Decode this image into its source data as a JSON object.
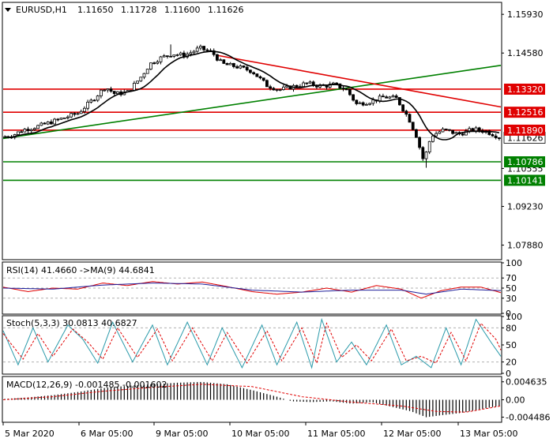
{
  "chart_data": [
    {
      "type": "candlestick",
      "panel": "price",
      "symbol": "EURUSD,H1",
      "ohlc_header": [
        "1.11650",
        "1.11728",
        "1.11600",
        "1.11626"
      ],
      "x_ticks": [
        "5 Mar 2020",
        "6 Mar 05:00",
        "9 Mar 05:00",
        "10 Mar 05:00",
        "11 Mar 05:00",
        "12 Mar 05:00",
        "13 Mar 05:00"
      ],
      "y_ticks": [
        1.1593,
        1.1458,
        1.1332,
        1.12516,
        1.1189,
        1.10786,
        1.10555,
        1.10141,
        1.0923,
        1.0788
      ],
      "ylim": [
        1.074,
        1.1632
      ],
      "current_price": 1.11626,
      "current_price_label": "1.11626",
      "levels": [
        {
          "price": 1.1332,
          "label": "1.13320",
          "color": "#e00000"
        },
        {
          "price": 1.12516,
          "label": "1.12516",
          "color": "#e00000"
        },
        {
          "price": 1.1189,
          "label": "1.11890",
          "color": "#e00000"
        },
        {
          "price": 1.10786,
          "label": "1.10786",
          "color": "#008000"
        },
        {
          "price": 1.10141,
          "label": "1.10141",
          "color": "#008000"
        }
      ],
      "trendlines": [
        {
          "color": "#008000",
          "from": [
            0.0,
            1.116
          ],
          "to": [
            1.0,
            1.1415
          ]
        },
        {
          "color": "#e00000",
          "from": [
            0.43,
            1.145
          ],
          "to": [
            1.0,
            1.127
          ]
        }
      ],
      "close_anchors": [
        [
          0.0,
          1.1165
        ],
        [
          0.02,
          1.1172
        ],
        [
          0.04,
          1.119
        ],
        [
          0.075,
          1.1205
        ],
        [
          0.11,
          1.1225
        ],
        [
          0.15,
          1.1248
        ],
        [
          0.18,
          1.1295
        ],
        [
          0.205,
          1.134
        ],
        [
          0.225,
          1.1315
        ],
        [
          0.25,
          1.1322
        ],
        [
          0.275,
          1.137
        ],
        [
          0.295,
          1.142
        ],
        [
          0.315,
          1.144
        ],
        [
          0.34,
          1.1455
        ],
        [
          0.365,
          1.145
        ],
        [
          0.395,
          1.1475
        ],
        [
          0.42,
          1.146
        ],
        [
          0.44,
          1.142
        ],
        [
          0.47,
          1.141
        ],
        [
          0.5,
          1.1395
        ],
        [
          0.53,
          1.1345
        ],
        [
          0.555,
          1.133
        ],
        [
          0.58,
          1.134
        ],
        [
          0.61,
          1.1352
        ],
        [
          0.64,
          1.1342
        ],
        [
          0.665,
          1.1348
        ],
        [
          0.69,
          1.133
        ],
        [
          0.71,
          1.128
        ],
        [
          0.74,
          1.129
        ],
        [
          0.765,
          1.1305
        ],
        [
          0.79,
          1.13
        ],
        [
          0.815,
          1.123
        ],
        [
          0.83,
          1.117
        ],
        [
          0.845,
          1.108
        ],
        [
          0.86,
          1.117
        ],
        [
          0.885,
          1.119
        ],
        [
          0.915,
          1.1175
        ],
        [
          0.945,
          1.1192
        ],
        [
          0.97,
          1.1185
        ],
        [
          1.0,
          1.1163
        ]
      ],
      "spikes": [
        {
          "position": 0.338,
          "high": 1.1488
        },
        {
          "position": 0.85,
          "low": 1.1058
        }
      ],
      "moving_average_color": "#000000"
    },
    {
      "type": "line",
      "panel": "rsi",
      "title": "RSI(14) 41.4660 ->MA(9) 44.6841",
      "y_ticks": [
        100,
        70,
        50,
        30,
        0
      ],
      "ylim": [
        0,
        100
      ],
      "levels": [
        70,
        50,
        30
      ],
      "series": [
        {
          "color": "#e00000",
          "anchors": [
            [
              0.0,
              52
            ],
            [
              0.05,
              43
            ],
            [
              0.1,
              50
            ],
            [
              0.15,
              48
            ],
            [
              0.2,
              60
            ],
            [
              0.25,
              55
            ],
            [
              0.3,
              63
            ],
            [
              0.35,
              58
            ],
            [
              0.4,
              62
            ],
            [
              0.45,
              53
            ],
            [
              0.5,
              43
            ],
            [
              0.55,
              38
            ],
            [
              0.6,
              42
            ],
            [
              0.65,
              50
            ],
            [
              0.7,
              42
            ],
            [
              0.75,
              55
            ],
            [
              0.8,
              48
            ],
            [
              0.84,
              30
            ],
            [
              0.88,
              45
            ],
            [
              0.92,
              52
            ],
            [
              0.96,
              52
            ],
            [
              1.0,
              41
            ]
          ]
        },
        {
          "color": "#1e1e9a",
          "anchors": [
            [
              0.0,
              50
            ],
            [
              0.1,
              48
            ],
            [
              0.2,
              56
            ],
            [
              0.3,
              60
            ],
            [
              0.4,
              58
            ],
            [
              0.5,
              46
            ],
            [
              0.6,
              42
            ],
            [
              0.7,
              46
            ],
            [
              0.8,
              46
            ],
            [
              0.85,
              38
            ],
            [
              0.92,
              48
            ],
            [
              1.0,
              45
            ]
          ]
        }
      ]
    },
    {
      "type": "line",
      "panel": "stochastic",
      "title": "Stoch(5,3,3) 30.0813 40.6827",
      "y_ticks": [
        100,
        80,
        50,
        20,
        0
      ],
      "ylim": [
        0,
        100
      ],
      "levels": [
        80,
        20
      ],
      "series": [
        {
          "color": "#2a9aaa",
          "anchors": [
            [
              0.0,
              75
            ],
            [
              0.03,
              15
            ],
            [
              0.06,
              80
            ],
            [
              0.09,
              20
            ],
            [
              0.13,
              85
            ],
            [
              0.16,
              60
            ],
            [
              0.19,
              18
            ],
            [
              0.22,
              90
            ],
            [
              0.26,
              20
            ],
            [
              0.3,
              85
            ],
            [
              0.33,
              15
            ],
            [
              0.37,
              90
            ],
            [
              0.41,
              15
            ],
            [
              0.44,
              80
            ],
            [
              0.48,
              10
            ],
            [
              0.52,
              85
            ],
            [
              0.55,
              15
            ],
            [
              0.59,
              90
            ],
            [
              0.62,
              10
            ],
            [
              0.64,
              95
            ],
            [
              0.67,
              20
            ],
            [
              0.7,
              55
            ],
            [
              0.73,
              15
            ],
            [
              0.77,
              85
            ],
            [
              0.8,
              15
            ],
            [
              0.83,
              30
            ],
            [
              0.86,
              10
            ],
            [
              0.89,
              80
            ],
            [
              0.92,
              15
            ],
            [
              0.95,
              95
            ],
            [
              0.98,
              55
            ],
            [
              1.0,
              30
            ]
          ]
        },
        {
          "color": "#e00000",
          "dashed": true,
          "anchors": [
            [
              0.0,
              70
            ],
            [
              0.04,
              25
            ],
            [
              0.07,
              70
            ],
            [
              0.1,
              30
            ],
            [
              0.14,
              78
            ],
            [
              0.17,
              55
            ],
            [
              0.2,
              25
            ],
            [
              0.23,
              80
            ],
            [
              0.27,
              28
            ],
            [
              0.31,
              78
            ],
            [
              0.34,
              22
            ],
            [
              0.38,
              80
            ],
            [
              0.42,
              22
            ],
            [
              0.45,
              72
            ],
            [
              0.49,
              18
            ],
            [
              0.53,
              75
            ],
            [
              0.56,
              22
            ],
            [
              0.6,
              80
            ],
            [
              0.63,
              18
            ],
            [
              0.65,
              88
            ],
            [
              0.68,
              28
            ],
            [
              0.71,
              50
            ],
            [
              0.74,
              22
            ],
            [
              0.78,
              78
            ],
            [
              0.81,
              22
            ],
            [
              0.84,
              30
            ],
            [
              0.87,
              18
            ],
            [
              0.9,
              72
            ],
            [
              0.93,
              22
            ],
            [
              0.96,
              88
            ],
            [
              0.99,
              60
            ],
            [
              1.0,
              41
            ]
          ]
        }
      ]
    },
    {
      "type": "bar",
      "panel": "macd",
      "title": "MACD(12,26,9) -0.001485 -0.001602",
      "y_ticks": [
        0.004635,
        0.0,
        -0.004486
      ],
      "ylim": [
        -0.0056,
        0.0058
      ],
      "histogram_color": "#000000",
      "signal_color": "#e00000",
      "histogram_anchors": [
        [
          0.0,
          0.0002
        ],
        [
          0.05,
          0.0006
        ],
        [
          0.1,
          0.0012
        ],
        [
          0.15,
          0.002
        ],
        [
          0.2,
          0.003
        ],
        [
          0.25,
          0.0036
        ],
        [
          0.3,
          0.004
        ],
        [
          0.35,
          0.0044
        ],
        [
          0.4,
          0.0046
        ],
        [
          0.45,
          0.004
        ],
        [
          0.5,
          0.0025
        ],
        [
          0.55,
          0.0008
        ],
        [
          0.58,
          -0.0004
        ],
        [
          0.62,
          -0.0006
        ],
        [
          0.66,
          -0.0004
        ],
        [
          0.7,
          -0.001
        ],
        [
          0.74,
          -0.0006
        ],
        [
          0.78,
          -0.0018
        ],
        [
          0.82,
          -0.003
        ],
        [
          0.85,
          -0.0045
        ],
        [
          0.88,
          -0.004
        ],
        [
          0.92,
          -0.0034
        ],
        [
          0.96,
          -0.0024
        ],
        [
          1.0,
          -0.0015
        ]
      ],
      "signal_anchors": [
        [
          0.0,
          0.0
        ],
        [
          0.1,
          0.0008
        ],
        [
          0.2,
          0.0022
        ],
        [
          0.3,
          0.0032
        ],
        [
          0.4,
          0.004
        ],
        [
          0.5,
          0.0034
        ],
        [
          0.6,
          0.0008
        ],
        [
          0.7,
          -0.0006
        ],
        [
          0.8,
          -0.0016
        ],
        [
          0.87,
          -0.003
        ],
        [
          0.93,
          -0.0032
        ],
        [
          1.0,
          -0.0016
        ]
      ]
    }
  ]
}
